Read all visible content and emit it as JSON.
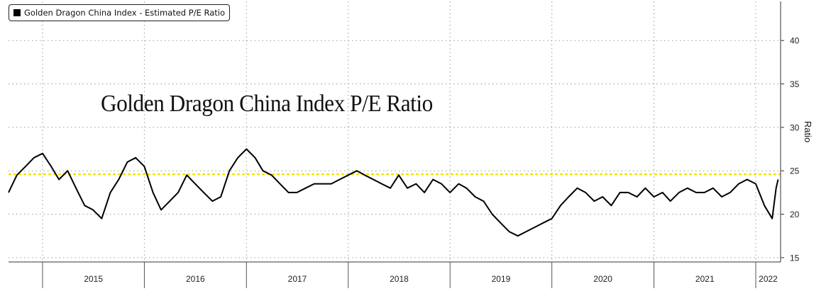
{
  "legend": {
    "label": "Golden Dragon China Index - Estimated P/E Ratio",
    "swatch_color": "#000000"
  },
  "annotation": {
    "text": "Golden Dragon China Index P/E Ratio"
  },
  "axis": {
    "ylabel": "Ratio",
    "position": "right"
  },
  "colors": {
    "series": "#000000",
    "reference_line": "#f2e600",
    "grid": "#9a9a9a"
  },
  "chart_data": {
    "type": "line",
    "title": "",
    "xlabel": "",
    "ylabel": "Ratio",
    "x_range": [
      "2014-09-01",
      "2022-03-31"
    ],
    "ylim": [
      14.5,
      44.5
    ],
    "y_ticks": [
      15,
      20,
      25,
      30,
      35,
      40
    ],
    "x_tick_labels": [
      "2015",
      "2016",
      "2017",
      "2018",
      "2019",
      "2020",
      "2021",
      "2022"
    ],
    "x_tick_dates": [
      "2015-01-01",
      "2016-01-01",
      "2017-01-01",
      "2018-01-01",
      "2019-01-01",
      "2020-01-01",
      "2021-01-01",
      "2022-01-01"
    ],
    "grid": true,
    "legend_placement": "top-left",
    "series": [
      {
        "name": "Golden Dragon China Index - Estimated P/E Ratio",
        "x": [
          "2014-09-01",
          "2014-10-01",
          "2014-11-01",
          "2014-12-01",
          "2015-01-01",
          "2015-02-01",
          "2015-03-01",
          "2015-04-01",
          "2015-05-01",
          "2015-06-01",
          "2015-07-01",
          "2015-08-01",
          "2015-09-01",
          "2015-10-01",
          "2015-11-01",
          "2015-12-01",
          "2016-01-01",
          "2016-02-01",
          "2016-03-01",
          "2016-04-01",
          "2016-05-01",
          "2016-06-01",
          "2016-07-01",
          "2016-08-01",
          "2016-09-01",
          "2016-10-01",
          "2016-11-01",
          "2016-12-01",
          "2017-01-01",
          "2017-02-01",
          "2017-03-01",
          "2017-04-01",
          "2017-05-01",
          "2017-06-01",
          "2017-07-01",
          "2017-08-01",
          "2017-09-01",
          "2017-10-01",
          "2017-11-01",
          "2017-12-01",
          "2018-01-01",
          "2018-02-01",
          "2018-03-01",
          "2018-04-01",
          "2018-05-01",
          "2018-06-01",
          "2018-07-01",
          "2018-08-01",
          "2018-09-01",
          "2018-10-01",
          "2018-11-01",
          "2018-12-01",
          "2019-01-01",
          "2019-02-01",
          "2019-03-01",
          "2019-04-01",
          "2019-05-01",
          "2019-06-01",
          "2019-07-01",
          "2019-08-01",
          "2019-09-01",
          "2019-10-01",
          "2019-11-01",
          "2019-12-01",
          "2020-01-01",
          "2020-02-01",
          "2020-03-01",
          "2020-04-01",
          "2020-05-01",
          "2020-06-01",
          "2020-07-01",
          "2020-08-01",
          "2020-09-01",
          "2020-10-01",
          "2020-11-01",
          "2020-12-01",
          "2021-01-01",
          "2021-02-01",
          "2021-03-01",
          "2021-04-01",
          "2021-05-01",
          "2021-06-01",
          "2021-07-01",
          "2021-08-01",
          "2021-09-01",
          "2021-10-01",
          "2021-11-01",
          "2021-12-01",
          "2022-01-01",
          "2022-02-01",
          "2022-03-01",
          "2022-03-15",
          "2022-03-22"
        ],
        "y": [
          22.5,
          24.5,
          25.5,
          26.5,
          27.0,
          25.5,
          24.0,
          25.0,
          23.0,
          21.0,
          20.5,
          19.5,
          22.5,
          24.0,
          26.0,
          26.5,
          25.5,
          22.5,
          20.5,
          21.5,
          22.5,
          24.5,
          23.5,
          22.5,
          21.5,
          22.0,
          25.0,
          26.5,
          27.5,
          26.5,
          25.0,
          24.5,
          23.5,
          22.5,
          22.5,
          23.0,
          23.5,
          23.5,
          23.5,
          24.0,
          24.5,
          25.0,
          24.5,
          24.0,
          23.5,
          23.0,
          24.5,
          23.0,
          23.5,
          22.5,
          24.0,
          23.5,
          22.5,
          23.5,
          23.0,
          22.0,
          21.5,
          20.0,
          19.0,
          18.0,
          17.5,
          18.0,
          18.5,
          19.0,
          19.5,
          21.0,
          22.0,
          23.0,
          22.5,
          21.5,
          22.0,
          21.0,
          22.5,
          22.5,
          22.0,
          23.0,
          22.0,
          22.5,
          21.5,
          22.5,
          23.0,
          22.5,
          22.5,
          23.0,
          22.0,
          22.5,
          23.5,
          24.0,
          23.5,
          21.0,
          19.5,
          23.0,
          24.0
        ]
      }
    ],
    "reference_line": {
      "y": 24.6
    }
  }
}
